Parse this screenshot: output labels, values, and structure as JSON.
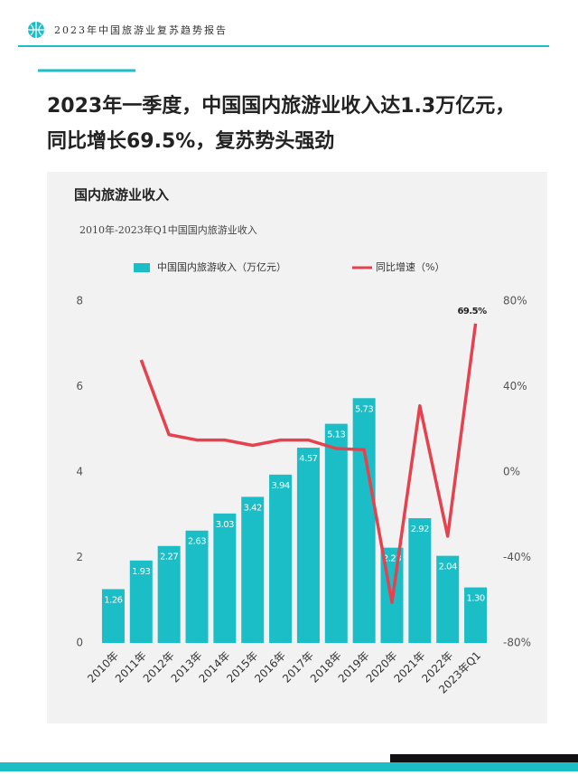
{
  "header": {
    "text": "2023年中国旅游业复苏趋势报告"
  },
  "headline": [
    "2023年一季度，中国国内旅游业收入达1.3万亿元，",
    "同比增长69.5%，复苏势头强劲"
  ],
  "chart_data": {
    "type": "bar",
    "title": "国内旅游业收入",
    "subtitle": "2010年-2023年Q1中国国内旅游业收入",
    "categories": [
      "2010年",
      "2011年",
      "2012年",
      "2013年",
      "2014年",
      "2015年",
      "2016年",
      "2017年",
      "2018年",
      "2019年",
      "2020年",
      "2021年",
      "2022年",
      "2023年Q1"
    ],
    "series": [
      {
        "name": "中国国内旅游收入（万亿元）",
        "type": "bar",
        "color": "#1bbec6",
        "values": [
          1.26,
          1.93,
          2.27,
          2.63,
          3.03,
          3.42,
          3.94,
          4.57,
          5.13,
          5.73,
          2.23,
          2.92,
          2.04,
          1.3
        ],
        "value_labels": [
          "1.26",
          "1.93",
          "2.27",
          "2.63",
          "3.03",
          "3.42",
          "3.94",
          "4.57",
          "5.13",
          "5.73",
          "2.23",
          "2.92",
          "2.04",
          "1.30"
        ]
      },
      {
        "name": "同比增速（%）",
        "type": "line",
        "axis": "y2",
        "color": "#e5424f",
        "values": [
          null,
          52.5,
          17.5,
          15,
          15,
          12.5,
          15,
          15,
          11,
          10.5,
          -61,
          31,
          -30,
          69.5
        ],
        "value_labels": [
          null,
          null,
          null,
          null,
          null,
          null,
          null,
          null,
          null,
          null,
          null,
          null,
          null,
          "69.5%"
        ]
      }
    ],
    "ylim": [
      0,
      8
    ],
    "yticks": [
      0,
      2,
      4,
      6,
      8
    ],
    "y2lim": [
      -80,
      80
    ],
    "y2ticks": [
      {
        "value": -80,
        "label": "-80%"
      },
      {
        "value": -40,
        "label": "-40%"
      },
      {
        "value": 0,
        "label": "0%"
      },
      {
        "value": 40,
        "label": "40%"
      },
      {
        "value": 80,
        "label": "80%"
      }
    ],
    "legend": "top",
    "grid": false
  }
}
